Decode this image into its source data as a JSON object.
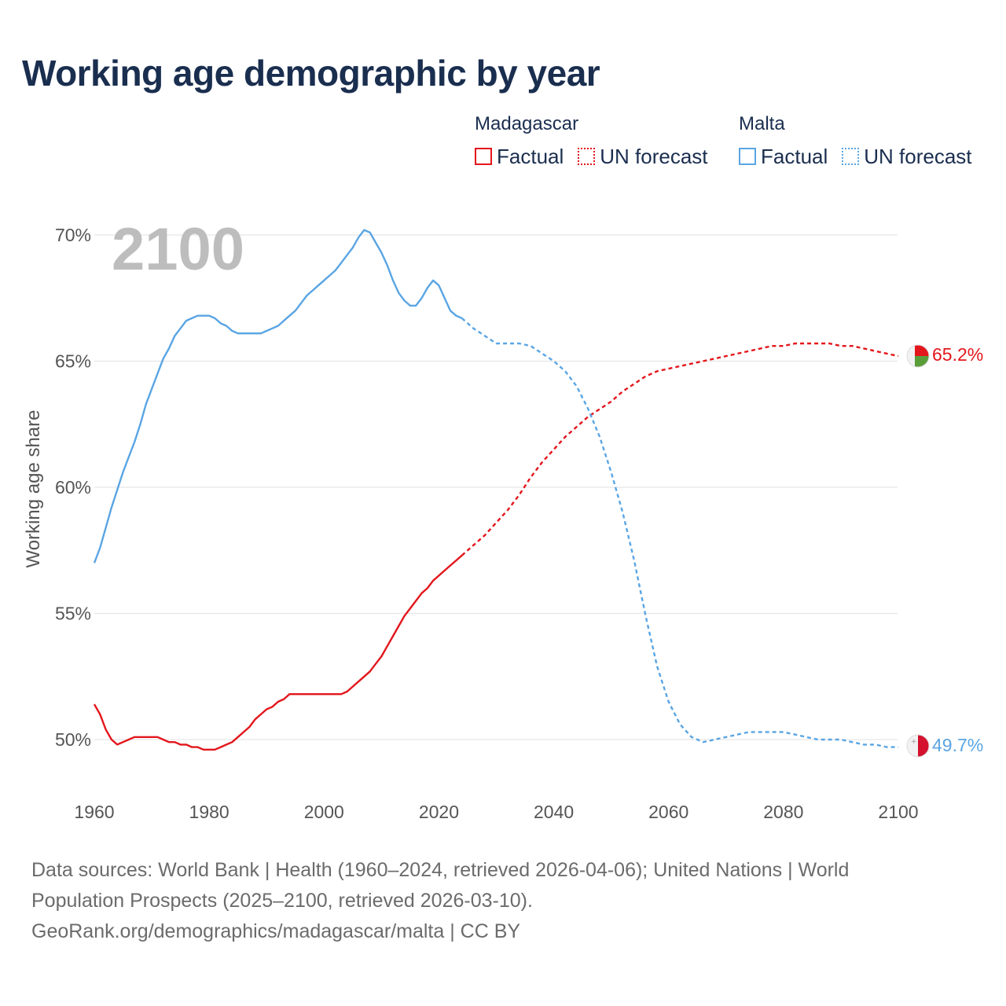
{
  "title": "Working age demographic by year",
  "legend": {
    "madagascar": {
      "name": "Madagascar",
      "factual": "Factual",
      "forecast": "UN forecast"
    },
    "malta": {
      "name": "Malta",
      "factual": "Factual",
      "forecast": "UN forecast"
    }
  },
  "colors": {
    "madagascar": "#e3161c",
    "malta": "#5aa5e3",
    "grid": "#e6e6e6",
    "year": "#bdbdbd"
  },
  "footer": {
    "line1": "Data sources: World Bank | Health (1960–2024, retrieved 2026-04-06); United Nations | World",
    "line2": "Population Prospects (2025–2100, retrieved 2026-03-10).",
    "line3": "GeoRank.org/demographics/madagascar/malta | CC BY"
  },
  "chart_data": {
    "type": "line",
    "current_year_label": "2100",
    "ylabel": "Working age share",
    "xlim": [
      1960,
      2100
    ],
    "ylim": [
      48,
      71
    ],
    "x_ticks": [
      1960,
      1980,
      2000,
      2020,
      2040,
      2060,
      2080,
      2100
    ],
    "x_tick_labels": [
      "1960",
      "1980",
      "2000",
      "2020",
      "2040",
      "2060",
      "2080",
      "2100"
    ],
    "y_ticks": [
      50,
      55,
      60,
      65,
      70
    ],
    "y_tick_labels": [
      "50%",
      "55%",
      "60%",
      "65%",
      "70%"
    ],
    "series": [
      {
        "name": "Madagascar",
        "factual_x": [
          1960,
          1961,
          1962,
          1963,
          1964,
          1965,
          1966,
          1967,
          1968,
          1969,
          1970,
          1971,
          1972,
          1973,
          1974,
          1975,
          1976,
          1977,
          1978,
          1979,
          1980,
          1981,
          1982,
          1983,
          1984,
          1985,
          1986,
          1987,
          1988,
          1989,
          1990,
          1991,
          1992,
          1993,
          1994,
          1995,
          1996,
          1997,
          1998,
          1999,
          2000,
          2001,
          2002,
          2003,
          2004,
          2005,
          2006,
          2007,
          2008,
          2009,
          2010,
          2011,
          2012,
          2013,
          2014,
          2015,
          2016,
          2017,
          2018,
          2019,
          2020,
          2021,
          2022,
          2023,
          2024
        ],
        "factual_y": [
          51.4,
          51.0,
          50.4,
          50.0,
          49.8,
          49.9,
          50.0,
          50.1,
          50.1,
          50.1,
          50.1,
          50.1,
          50.0,
          49.9,
          49.9,
          49.8,
          49.8,
          49.7,
          49.7,
          49.6,
          49.6,
          49.6,
          49.7,
          49.8,
          49.9,
          50.1,
          50.3,
          50.5,
          50.8,
          51.0,
          51.2,
          51.3,
          51.5,
          51.6,
          51.8,
          51.8,
          51.8,
          51.8,
          51.8,
          51.8,
          51.8,
          51.8,
          51.8,
          51.8,
          51.9,
          52.1,
          52.3,
          52.5,
          52.7,
          53.0,
          53.3,
          53.7,
          54.1,
          54.5,
          54.9,
          55.2,
          55.5,
          55.8,
          56.0,
          56.3,
          56.5,
          56.7,
          56.9,
          57.1,
          57.3
        ],
        "forecast_x": [
          2024,
          2026,
          2028,
          2030,
          2032,
          2034,
          2036,
          2038,
          2040,
          2042,
          2044,
          2046,
          2048,
          2050,
          2052,
          2054,
          2056,
          2058,
          2060,
          2062,
          2064,
          2066,
          2068,
          2070,
          2072,
          2074,
          2076,
          2078,
          2080,
          2082,
          2084,
          2086,
          2088,
          2090,
          2092,
          2094,
          2096,
          2098,
          2100
        ],
        "forecast_y": [
          57.3,
          57.7,
          58.1,
          58.6,
          59.1,
          59.7,
          60.4,
          61.0,
          61.5,
          62.0,
          62.4,
          62.8,
          63.1,
          63.4,
          63.8,
          64.1,
          64.4,
          64.6,
          64.7,
          64.8,
          64.9,
          65.0,
          65.1,
          65.2,
          65.3,
          65.4,
          65.5,
          65.6,
          65.6,
          65.7,
          65.7,
          65.7,
          65.7,
          65.6,
          65.6,
          65.5,
          65.4,
          65.3,
          65.2
        ],
        "end_value": 65.2,
        "end_label": "65.2%"
      },
      {
        "name": "Malta",
        "factual_x": [
          1960,
          1961,
          1962,
          1963,
          1964,
          1965,
          1966,
          1967,
          1968,
          1969,
          1970,
          1971,
          1972,
          1973,
          1974,
          1975,
          1976,
          1977,
          1978,
          1979,
          1980,
          1981,
          1982,
          1983,
          1984,
          1985,
          1986,
          1987,
          1988,
          1989,
          1990,
          1991,
          1992,
          1993,
          1994,
          1995,
          1996,
          1997,
          1998,
          1999,
          2000,
          2001,
          2002,
          2003,
          2004,
          2005,
          2006,
          2007,
          2008,
          2009,
          2010,
          2011,
          2012,
          2013,
          2014,
          2015,
          2016,
          2017,
          2018,
          2019,
          2020,
          2021,
          2022,
          2023,
          2024
        ],
        "factual_y": [
          57.0,
          57.6,
          58.4,
          59.2,
          59.9,
          60.6,
          61.2,
          61.8,
          62.5,
          63.3,
          63.9,
          64.5,
          65.1,
          65.5,
          66.0,
          66.3,
          66.6,
          66.7,
          66.8,
          66.8,
          66.8,
          66.7,
          66.5,
          66.4,
          66.2,
          66.1,
          66.1,
          66.1,
          66.1,
          66.1,
          66.2,
          66.3,
          66.4,
          66.6,
          66.8,
          67.0,
          67.3,
          67.6,
          67.8,
          68.0,
          68.2,
          68.4,
          68.6,
          68.9,
          69.2,
          69.5,
          69.9,
          70.2,
          70.1,
          69.7,
          69.3,
          68.8,
          68.2,
          67.7,
          67.4,
          67.2,
          67.2,
          67.5,
          67.9,
          68.2,
          68.0,
          67.5,
          67.0,
          66.8,
          66.7
        ],
        "forecast_x": [
          2024,
          2026,
          2028,
          2030,
          2032,
          2034,
          2036,
          2038,
          2040,
          2042,
          2044,
          2046,
          2048,
          2050,
          2052,
          2054,
          2056,
          2058,
          2060,
          2062,
          2064,
          2066,
          2068,
          2070,
          2072,
          2074,
          2076,
          2078,
          2080,
          2082,
          2084,
          2086,
          2088,
          2090,
          2092,
          2094,
          2096,
          2098,
          2100
        ],
        "forecast_y": [
          66.7,
          66.3,
          66.0,
          65.7,
          65.7,
          65.7,
          65.6,
          65.3,
          65.0,
          64.6,
          64.0,
          63.1,
          62.0,
          60.6,
          59.0,
          57.1,
          54.9,
          52.9,
          51.5,
          50.6,
          50.1,
          49.9,
          50.0,
          50.1,
          50.2,
          50.3,
          50.3,
          50.3,
          50.3,
          50.2,
          50.1,
          50.0,
          50.0,
          50.0,
          49.9,
          49.8,
          49.8,
          49.7,
          49.7
        ],
        "end_value": 49.7,
        "end_label": "49.7%"
      }
    ]
  }
}
